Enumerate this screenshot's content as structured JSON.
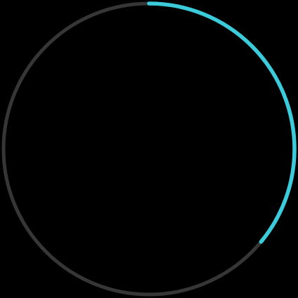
{
  "progress_ring": {
    "progress_fraction": 0.36,
    "start_position": "top",
    "direction": "clockwise",
    "track_color": "#363636",
    "progress_color": "#3ccbda",
    "background_color": "#000000"
  }
}
